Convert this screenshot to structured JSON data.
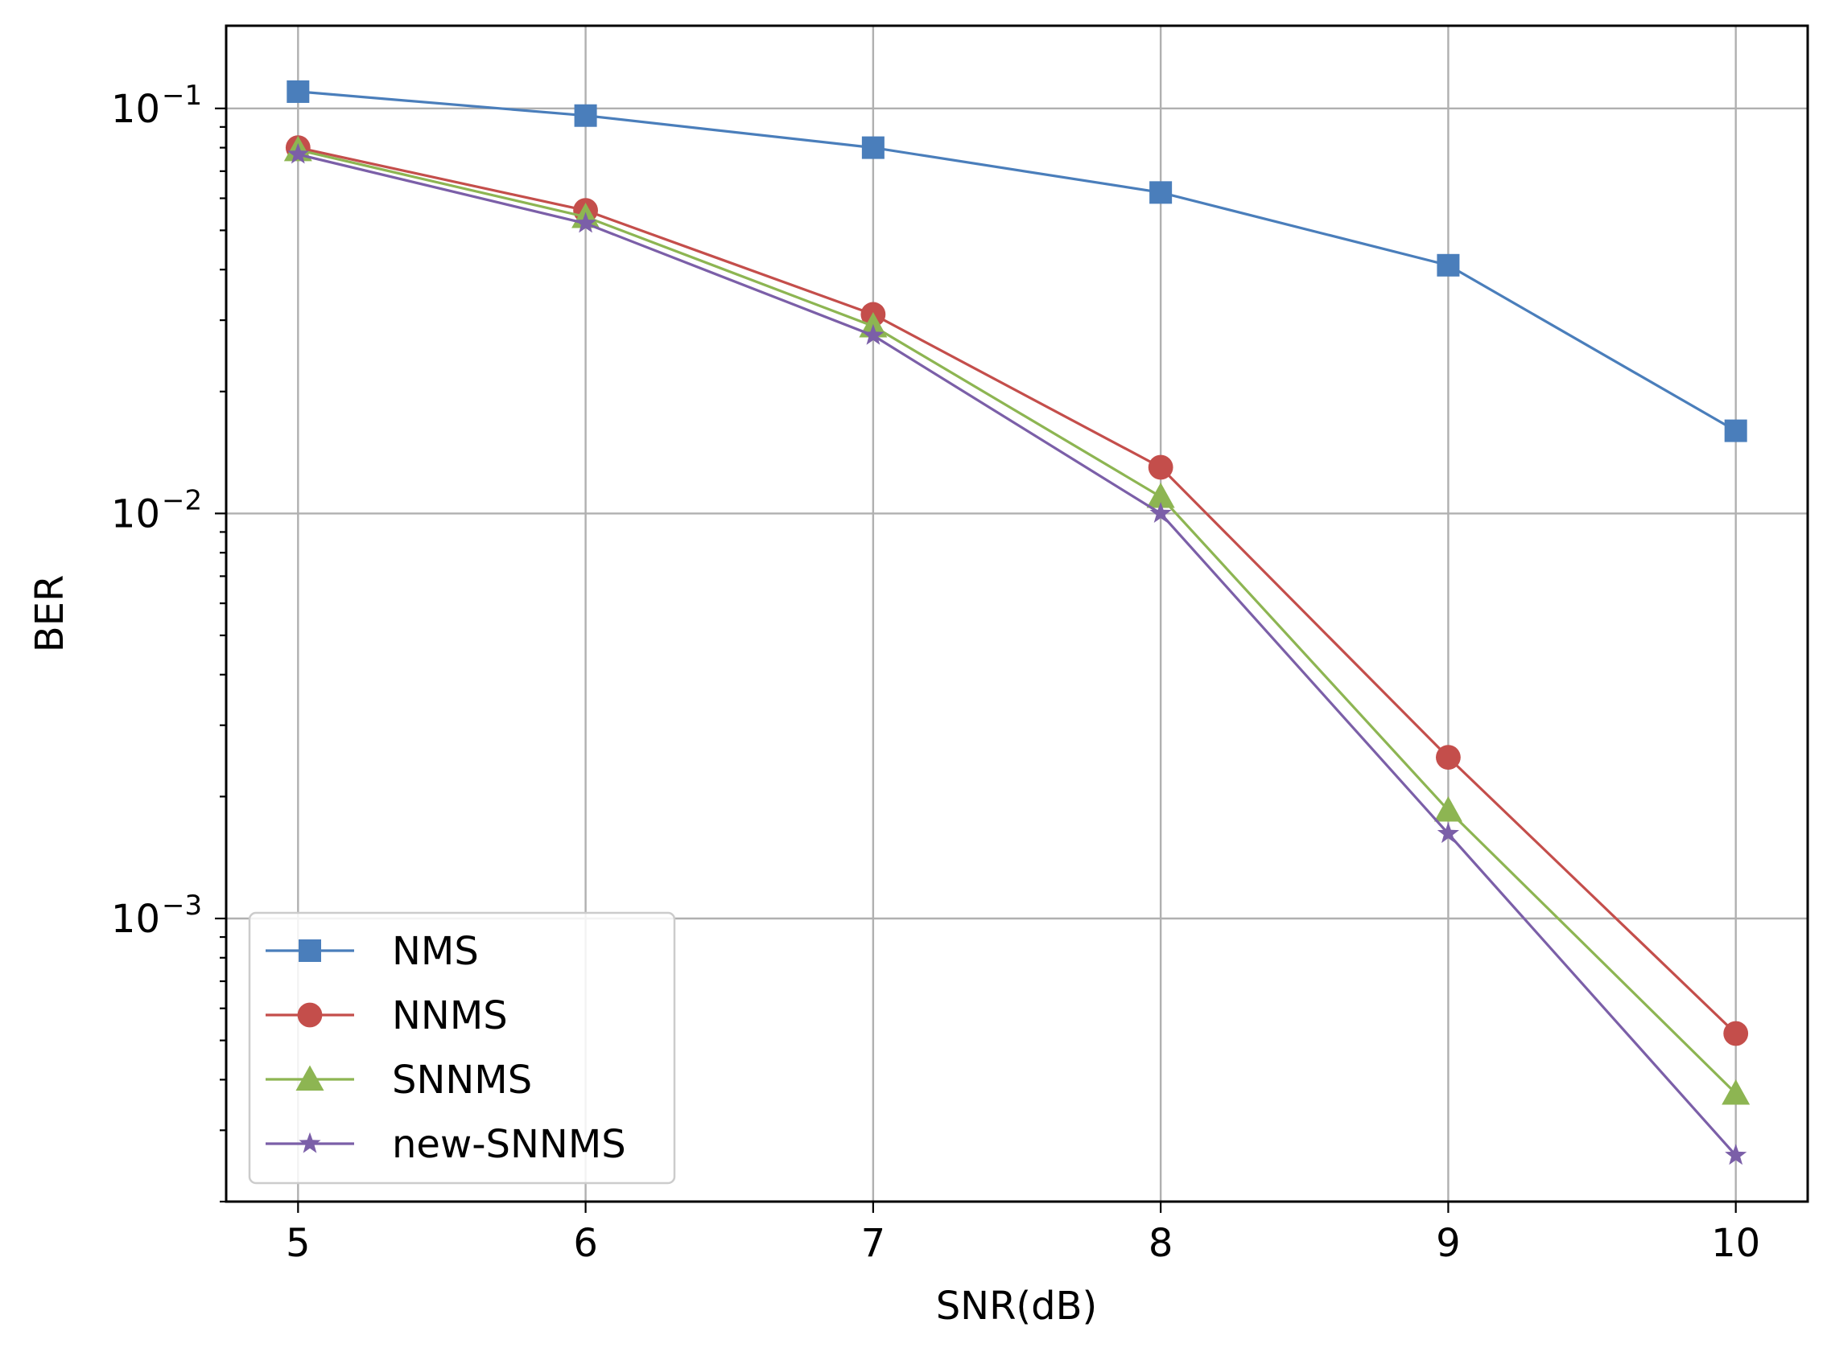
{
  "chart_data": {
    "type": "line",
    "xlabel": "SNR(dB)",
    "ylabel": "BER",
    "yscale": "log",
    "x": [
      5,
      6,
      7,
      8,
      9,
      10
    ],
    "xlim": [
      4.75,
      10.25
    ],
    "ylim": [
      0.0002,
      0.16
    ],
    "x_ticks": [
      "5",
      "6",
      "7",
      "8",
      "9",
      "10"
    ],
    "y_ticks": [
      {
        "value": 0.1,
        "base": "10",
        "exp": "−1"
      },
      {
        "value": 0.01,
        "base": "10",
        "exp": "−2"
      },
      {
        "value": 0.001,
        "base": "10",
        "exp": "−3"
      }
    ],
    "grid": true,
    "legend_position": "lower-left",
    "series": [
      {
        "name": "NMS",
        "color": "#4a7ebb",
        "marker": "square",
        "values": [
          0.11,
          0.096,
          0.08,
          0.062,
          0.041,
          0.016
        ]
      },
      {
        "name": "NNMS",
        "color": "#c44e4b",
        "marker": "circle",
        "values": [
          0.08,
          0.056,
          0.031,
          0.013,
          0.0025,
          0.00052
        ]
      },
      {
        "name": "SNNMS",
        "color": "#8db552",
        "marker": "triangle",
        "values": [
          0.079,
          0.054,
          0.029,
          0.011,
          0.00185,
          0.00037
        ]
      },
      {
        "name": "new-SNNMS",
        "color": "#7b5fa8",
        "marker": "star",
        "values": [
          0.077,
          0.052,
          0.0275,
          0.01,
          0.00162,
          0.00026
        ]
      }
    ]
  }
}
